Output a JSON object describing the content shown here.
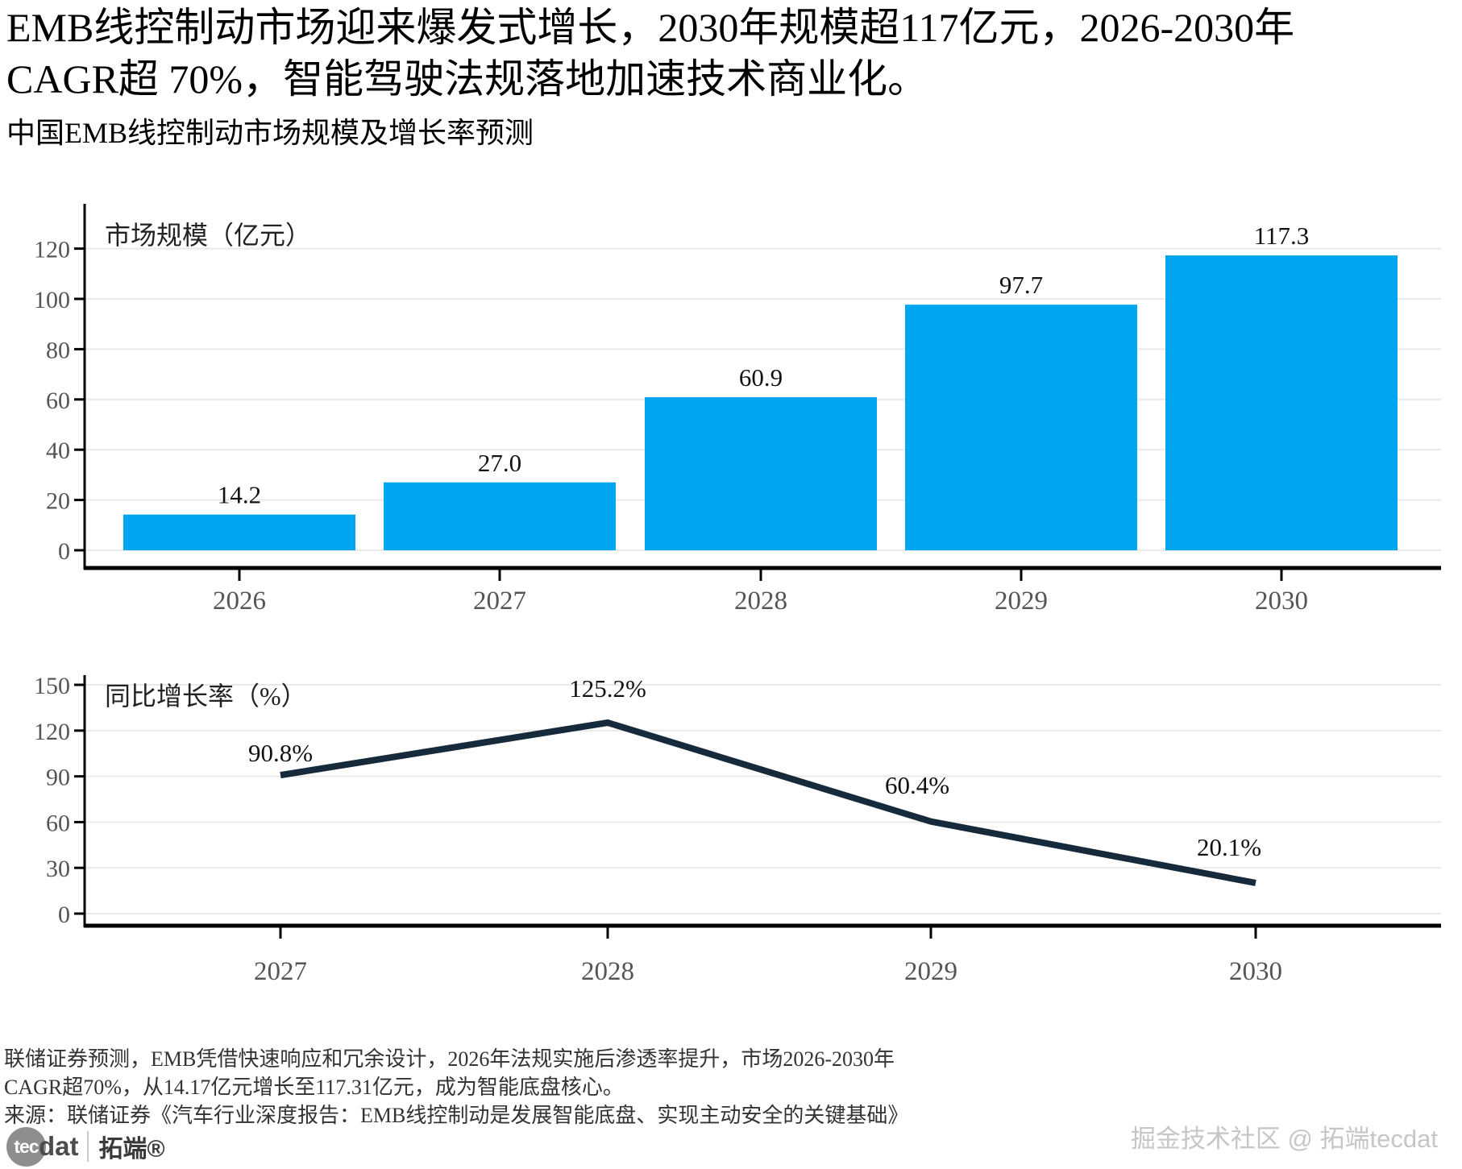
{
  "header": {
    "title_line1": "EMB线控制动市场迎来爆发式增长，2030年规模超117亿元，2026-2030年",
    "title_line2": "CAGR超 70%，智能驾驶法规落地加速技术商业化。",
    "subtitle": "中国EMB线控制动市场规模及增长率预测"
  },
  "chart_data": [
    {
      "type": "bar",
      "title": "市场规模（亿元）",
      "categories": [
        "2026",
        "2027",
        "2028",
        "2029",
        "2030"
      ],
      "values": [
        14.2,
        27.0,
        60.9,
        97.7,
        117.3
      ],
      "value_labels": [
        "14.2",
        "27.0",
        "60.9",
        "97.7",
        "117.3"
      ],
      "ylim": [
        0,
        137
      ],
      "yticks": [
        0,
        20,
        40,
        60,
        80,
        100,
        120
      ],
      "grid": true,
      "legend_position": "inside-top-left",
      "bar_color": "#00a6f0"
    },
    {
      "type": "line",
      "title": "同比增长率（%）",
      "categories": [
        "2027",
        "2028",
        "2029",
        "2030"
      ],
      "values": [
        90.8,
        125.2,
        60.4,
        20.1
      ],
      "value_labels": [
        "90.8%",
        "125.2%",
        "60.4%",
        "20.1%"
      ],
      "ylim": [
        0,
        160
      ],
      "yticks": [
        0,
        30,
        60,
        90,
        120,
        150
      ],
      "grid": true,
      "legend_position": "inside-top-left",
      "line_color": "#162a3b"
    }
  ],
  "styles": {
    "axis_color": "#000000",
    "grid_color": "#e9e9e9",
    "tick_label_color": "#555555",
    "value_label_color": "#111111",
    "chart_title_color": "#222222"
  },
  "footer": {
    "note_line1": "联储证券预测，EMB凭借快速响应和冗余设计，2026年法规实施后渗透率提升，市场2026-2030年",
    "note_line2": "CAGR超70%，从14.17亿元增长至117.31亿元，成为智能底盘核心。",
    "source": "来源：联储证券《汽车行业深度报告：EMB线控制动是发展智能底盘、实现主动安全的关键基础》",
    "logo": {
      "tec": "tec",
      "dat": "dat",
      "cn": "拓端®"
    },
    "watermark": "掘金技术社区 @ 拓端tecdat"
  }
}
